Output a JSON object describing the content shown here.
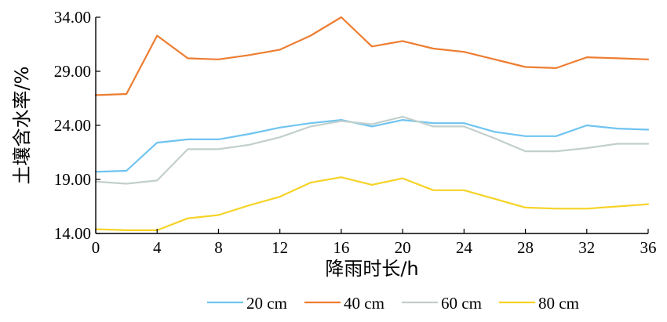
{
  "chart_data": {
    "type": "line",
    "title": "",
    "xlabel": "降雨时长/h",
    "ylabel": "土壤含水率/%",
    "xlim": [
      0,
      36
    ],
    "ylim": [
      14,
      34
    ],
    "x_ticks": [
      "0",
      "4",
      "8",
      "12",
      "16",
      "20",
      "24",
      "28",
      "32",
      "36"
    ],
    "y_ticks": [
      "14.00",
      "19.00",
      "24.00",
      "29.00",
      "34.00"
    ],
    "grid": false,
    "legend_position": "bottom",
    "x": [
      0,
      2,
      4,
      6,
      8,
      10,
      12,
      14,
      16,
      18,
      20,
      22,
      24,
      26,
      28,
      30,
      32,
      34,
      36
    ],
    "series": [
      {
        "name": "20 cm",
        "color": "#6fc4f0",
        "values": [
          19.7,
          19.8,
          22.4,
          22.7,
          22.7,
          23.2,
          23.8,
          24.2,
          24.5,
          23.9,
          24.5,
          24.2,
          24.2,
          23.4,
          23.0,
          23.0,
          24.0,
          23.7,
          23.6
        ]
      },
      {
        "name": "40 cm",
        "color": "#ed7d31",
        "values": [
          26.8,
          26.9,
          32.3,
          30.2,
          30.1,
          30.5,
          31.0,
          32.3,
          34.0,
          31.3,
          31.8,
          31.1,
          30.8,
          30.1,
          29.4,
          29.3,
          30.3,
          30.2,
          30.1
        ]
      },
      {
        "name": "60 cm",
        "color": "#c2cfcb",
        "values": [
          18.8,
          18.6,
          18.9,
          21.8,
          21.8,
          22.2,
          22.9,
          23.9,
          24.4,
          24.1,
          24.8,
          23.9,
          23.9,
          22.8,
          21.6,
          21.6,
          21.9,
          22.3,
          22.3
        ]
      },
      {
        "name": "80 cm",
        "color": "#f5d327",
        "values": [
          14.4,
          14.3,
          14.3,
          15.4,
          15.7,
          16.6,
          17.4,
          18.7,
          19.2,
          18.5,
          19.1,
          18.0,
          18.0,
          17.2,
          16.4,
          16.3,
          16.3,
          16.5,
          16.7
        ]
      }
    ]
  }
}
